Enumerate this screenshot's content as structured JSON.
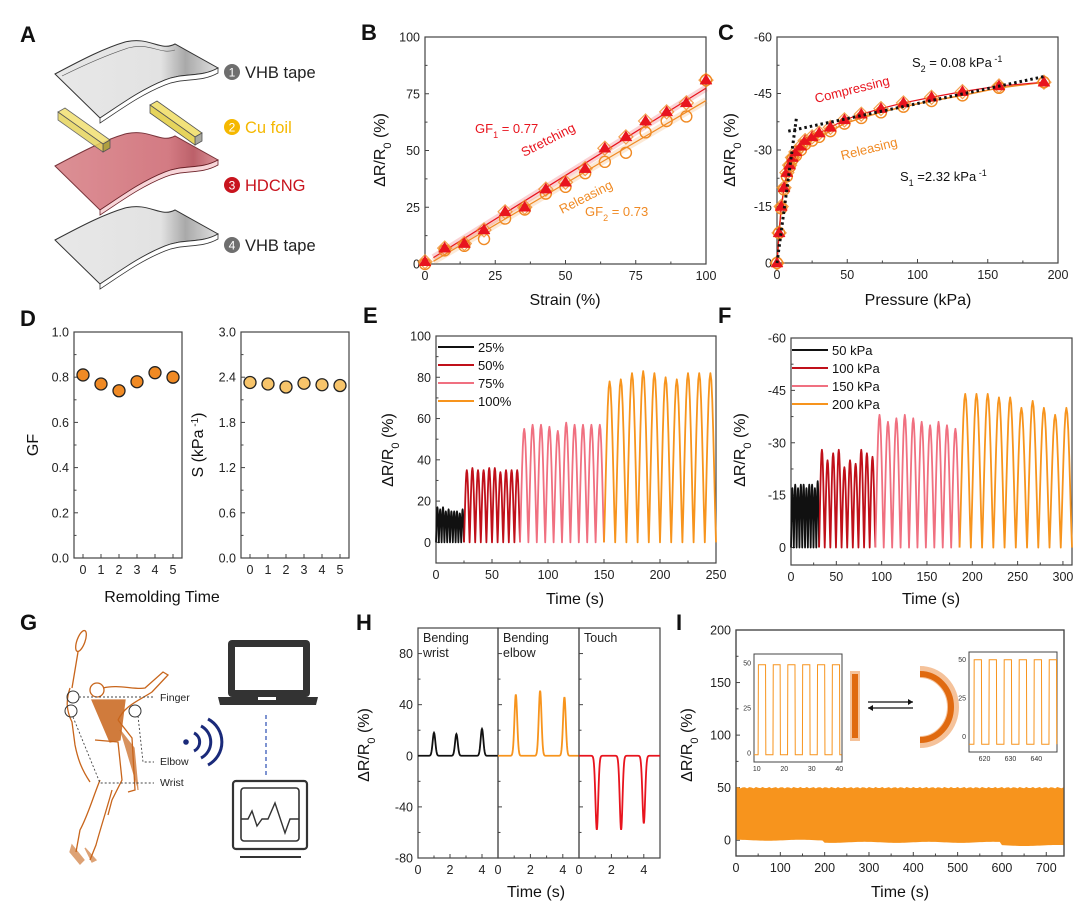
{
  "figure": {
    "panel_letters": [
      "A",
      "B",
      "C",
      "D",
      "E",
      "F",
      "G",
      "H",
      "I"
    ]
  },
  "panel_a": {
    "layers": [
      {
        "num": "1",
        "label": "VHB tape",
        "color": "#6e6e6e"
      },
      {
        "num": "2",
        "label": "Cu foil",
        "color": "#f5b800"
      },
      {
        "num": "3",
        "label": "HDCNG",
        "color": "#c8141e"
      },
      {
        "num": "4",
        "label": "VHB tape",
        "color": "#6e6e6e"
      }
    ]
  },
  "panel_g": {
    "labels": {
      "finger": "Finger",
      "elbow": "Elbow",
      "wrist": "Wrist"
    },
    "icons": [
      "badminton-player-icon",
      "wireless-signal-icon",
      "laptop-icon",
      "monitor-waveform-icon"
    ]
  },
  "chart_data": [
    {
      "id": "B",
      "type": "scatter",
      "title": "",
      "xlabel": "Strain (%)",
      "ylabel": "ΔR/R0 (%)",
      "xlim": [
        0,
        100
      ],
      "ylim": [
        0,
        100
      ],
      "xticks": [
        0,
        25,
        50,
        75,
        100
      ],
      "yticks": [
        0,
        25,
        50,
        75,
        100
      ],
      "series": [
        {
          "name": "Stretching",
          "marker": "filled-triangle",
          "color": "#e8141e",
          "x": [
            0,
            7,
            14,
            21,
            28.5,
            35.5,
            43,
            50,
            57,
            64,
            71.5,
            78.5,
            86,
            93,
            100
          ],
          "y": [
            1,
            7,
            9,
            15,
            23,
            25,
            33,
            36,
            42,
            51,
            56,
            63,
            67,
            71,
            81
          ]
        },
        {
          "name": "Releasing",
          "marker": "open-circle",
          "color": "#f08a24",
          "x": [
            0,
            7,
            14,
            21,
            28.5,
            35.5,
            43,
            50,
            57,
            64,
            71.5,
            78.5,
            86,
            93,
            100
          ],
          "y": [
            0,
            6,
            8,
            11,
            20,
            24,
            31,
            34,
            40,
            45,
            49,
            58,
            63,
            65,
            81
          ]
        }
      ],
      "fits": [
        {
          "name": "GF1",
          "slope": 0.77,
          "intercept": -1.5,
          "color": "#e8141e"
        },
        {
          "name": "GF2",
          "slope": 0.73,
          "intercept": -3,
          "color": "#f08a24"
        }
      ],
      "annotations": [
        {
          "text_main": "GF",
          "sub": "1",
          "tail": " = 0.77",
          "color": "#e8141e"
        },
        {
          "text": "Stretching",
          "color": "#e8141e"
        },
        {
          "text": "Releasing",
          "color": "#f08a24"
        },
        {
          "text_main": "GF",
          "sub": "2",
          "tail": " = 0.73",
          "color": "#f08a24"
        }
      ]
    },
    {
      "id": "C",
      "type": "scatter",
      "xlabel": "Pressure (kPa)",
      "ylabel": "ΔR/R0 (%)",
      "xlim": [
        0,
        200
      ],
      "ylim": [
        0,
        -60
      ],
      "xticks": [
        0,
        50,
        100,
        150,
        200
      ],
      "yticks": [
        0,
        -15,
        -30,
        -45,
        -60
      ],
      "series": [
        {
          "name": "Compressing",
          "marker": "filled-triangle",
          "color": "#e8141e",
          "x": [
            0,
            1.5,
            3,
            5,
            7,
            9,
            11,
            13.5,
            17,
            20,
            25,
            30,
            38,
            48,
            60,
            74,
            90,
            110,
            132,
            158,
            190
          ],
          "y": [
            0,
            -8,
            -15,
            -20,
            -24,
            -26,
            -28,
            -29.5,
            -31,
            -32.5,
            -33.5,
            -34.5,
            -36,
            -38,
            -39.5,
            -41,
            -42.5,
            -44,
            -45.5,
            -47,
            -48
          ]
        },
        {
          "name": "Releasing",
          "marker": "open-circle",
          "color": "#f08a24",
          "x": [
            0,
            1.5,
            3,
            5,
            7,
            9,
            11,
            13.5,
            17,
            20,
            25,
            30,
            38,
            48,
            60,
            74,
            90,
            110,
            132,
            158,
            190
          ],
          "y": [
            0,
            -8,
            -14.5,
            -19.5,
            -23,
            -25.5,
            -27.5,
            -28.5,
            -30,
            -31.5,
            -32.5,
            -33.5,
            -35,
            -37,
            -38.5,
            -40,
            -41.5,
            -43,
            -44.5,
            -46.5,
            -48
          ]
        }
      ],
      "fits": [
        {
          "name": "S1",
          "x": [
            0,
            14
          ],
          "y": [
            0,
            -39
          ],
          "color": "#111"
        },
        {
          "name": "S2",
          "x": [
            8,
            190
          ],
          "y": [
            -35,
            -49.5
          ],
          "color": "#111"
        }
      ],
      "annotations": [
        {
          "text_main": "S",
          "sub": "2",
          "tail": " = 0.08 kPa",
          "sup": "-1",
          "color": "#111"
        },
        {
          "text": "Compressing",
          "color": "#e8141e"
        },
        {
          "text": "Releasing",
          "color": "#f08a24"
        },
        {
          "text_main": "S",
          "sub": "1",
          "tail": " =2.32 kPa",
          "sup": "-1",
          "color": "#111"
        }
      ]
    },
    {
      "id": "D-left",
      "type": "scatter",
      "xlabel": "Remolding Time",
      "ylabel": "GF",
      "xlim": [
        -0.5,
        5.5
      ],
      "ylim": [
        0,
        1.0
      ],
      "xticks": [
        0,
        1,
        2,
        3,
        4,
        5
      ],
      "yticks": [
        0.0,
        0.2,
        0.4,
        0.6,
        0.8,
        1.0
      ],
      "ytick_labels": [
        "0.0",
        "0.2",
        "0.4",
        "0.6",
        "0.8",
        "1.0"
      ],
      "series": [
        {
          "name": "GF",
          "color": "#f08a24",
          "x": [
            0,
            1,
            2,
            3,
            4,
            5
          ],
          "y": [
            0.81,
            0.77,
            0.74,
            0.78,
            0.82,
            0.8
          ]
        }
      ]
    },
    {
      "id": "D-right",
      "type": "scatter",
      "xlabel": "Remolding Time",
      "ylabel": "S (kPa-1)",
      "xlim": [
        -0.5,
        5.5
      ],
      "ylim": [
        0,
        3.0
      ],
      "xticks": [
        0,
        1,
        2,
        3,
        4,
        5
      ],
      "yticks": [
        0.0,
        0.6,
        1.2,
        1.8,
        2.4,
        3.0
      ],
      "ytick_labels": [
        "0.0",
        "0.6",
        "1.2",
        "1.8",
        "2.4",
        "3.0"
      ],
      "series": [
        {
          "name": "S",
          "color": "#f7c46a",
          "x": [
            0,
            1,
            2,
            3,
            4,
            5
          ],
          "y": [
            2.33,
            2.31,
            2.27,
            2.32,
            2.3,
            2.29
          ]
        }
      ]
    },
    {
      "id": "E",
      "type": "line",
      "xlabel": "Time (s)",
      "ylabel": "ΔR/R0 (%)",
      "xlim": [
        0,
        250
      ],
      "ylim": [
        -10,
        100
      ],
      "xticks": [
        0,
        50,
        100,
        150,
        200,
        250
      ],
      "yticks": [
        0,
        20,
        40,
        60,
        80,
        100
      ],
      "legend": "top-left",
      "series": [
        {
          "name": "25%",
          "color": "#111111",
          "t_start": 0,
          "t_end": 25,
          "period": 2.5,
          "peaks": [
            17,
            16,
            17,
            15,
            16,
            15,
            15,
            15,
            14,
            16
          ]
        },
        {
          "name": "50%",
          "color": "#c0101a",
          "t_start": 25,
          "t_end": 75,
          "period": 5,
          "peaks": [
            35,
            36,
            35,
            35,
            36,
            36,
            34,
            35,
            35,
            35
          ]
        },
        {
          "name": "75%",
          "color": "#f07080",
          "t_start": 75,
          "t_end": 150,
          "period": 7.5,
          "peaks": [
            55,
            57,
            57,
            56,
            54,
            58,
            57,
            57,
            57,
            57
          ]
        },
        {
          "name": "100%",
          "color": "#f7941d",
          "t_start": 150,
          "t_end": 250,
          "period": 10,
          "peaks": [
            78,
            79,
            82,
            83,
            82,
            80,
            79,
            82,
            82,
            82
          ]
        }
      ]
    },
    {
      "id": "F",
      "type": "line",
      "xlabel": "Time (s)",
      "ylabel": "ΔR/R0 (%)",
      "xlim": [
        0,
        310
      ],
      "ylim": [
        5,
        -60
      ],
      "xticks": [
        0,
        50,
        100,
        150,
        200,
        250,
        300
      ],
      "yticks": [
        0,
        -15,
        -30,
        -45,
        -60
      ],
      "legend": "top-left",
      "series": [
        {
          "name": "50 kPa",
          "color": "#111111",
          "t_start": 0,
          "t_end": 31,
          "period": 3.1,
          "peaks": [
            -17,
            -18,
            -17,
            -18,
            -18,
            -17,
            -18,
            -18,
            -17,
            -19
          ]
        },
        {
          "name": "100 kPa",
          "color": "#c0101a",
          "t_start": 31,
          "t_end": 93,
          "period": 6.2,
          "peaks": [
            -28,
            -25,
            -27,
            -28,
            -23,
            -25,
            -24,
            -28,
            -27,
            -26
          ]
        },
        {
          "name": "150 kPa",
          "color": "#f07080",
          "t_start": 93,
          "t_end": 186,
          "period": 9.3,
          "peaks": [
            -38,
            -36,
            -37,
            -38,
            -37,
            -36,
            -35,
            -36,
            -35,
            -34
          ]
        },
        {
          "name": "200 kPa",
          "color": "#f7941d",
          "t_start": 186,
          "t_end": 310,
          "period": 12.4,
          "peaks": [
            -44,
            -44,
            -44,
            -43,
            -43,
            -40,
            -42,
            -40,
            -38,
            -40
          ]
        }
      ]
    },
    {
      "id": "H",
      "type": "line",
      "xlabel": "Time (s)",
      "ylabel": "ΔR/R0 (%)",
      "ylim": [
        -80,
        100
      ],
      "yticks": [
        -80,
        -40,
        0,
        40,
        80
      ],
      "subpanels": [
        {
          "title_line1": "Bending",
          "title_line2": "wrist",
          "color": "#111111",
          "xlim": [
            0,
            5
          ],
          "xticks": [
            0,
            2,
            4
          ],
          "peak_times": [
            1.0,
            2.4,
            4.0
          ],
          "peak_values": [
            18,
            17,
            21
          ]
        },
        {
          "title_line1": "Bending",
          "title_line2": "elbow",
          "color": "#f7941d",
          "xlim": [
            0,
            5
          ],
          "xticks": [
            0,
            2,
            4
          ],
          "peak_times": [
            1.1,
            2.6,
            4.1
          ],
          "peak_values": [
            48,
            51,
            46
          ]
        },
        {
          "title_line1": "Touch",
          "title_line2": "",
          "color": "#e8141e",
          "xlim": [
            0,
            5
          ],
          "xticks": [
            0,
            2,
            4
          ],
          "peak_times": [
            1.1,
            2.6,
            4.0
          ],
          "peak_values": [
            -58,
            -58,
            -53
          ]
        }
      ]
    },
    {
      "id": "I",
      "type": "area",
      "xlabel": "Time (s)",
      "ylabel": "ΔR/R0 (%)",
      "xlim": [
        0,
        740
      ],
      "ylim": [
        -15,
        200
      ],
      "xticks": [
        0,
        100,
        200,
        300,
        400,
        500,
        600,
        700
      ],
      "yticks": [
        0,
        50,
        100,
        150,
        200
      ],
      "color": "#f7941d",
      "band": {
        "upper": 50,
        "lower": [
          0,
          -2,
          -5
        ]
      },
      "insets": [
        {
          "xlim": [
            9,
            41
          ],
          "xticks": [
            10,
            20,
            30,
            40
          ],
          "ylim": [
            -5,
            55
          ],
          "yticks": [
            0,
            25,
            50
          ],
          "period": 5.4,
          "phase": 10.5,
          "high": 49,
          "low": -1
        },
        {
          "xlim": [
            614,
            648
          ],
          "xticks": [
            620,
            630,
            640
          ],
          "ylim": [
            -10,
            55
          ],
          "yticks": [
            0,
            25,
            50
          ],
          "period": 5.8,
          "phase": 616,
          "high": 50,
          "low": -5
        }
      ]
    }
  ]
}
